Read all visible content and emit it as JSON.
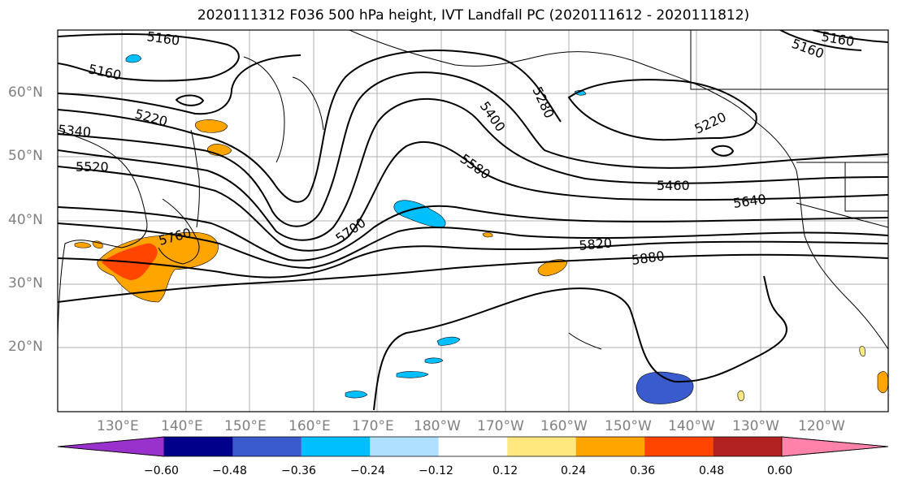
{
  "title": "2020111312 F036 500 hPa height, IVT Landfall PC (2020111612 - 2020111812)",
  "lat_labels": [
    "60°N",
    "50°N",
    "40°N",
    "30°N",
    "20°N"
  ],
  "lon_labels": [
    "130°E",
    "140°E",
    "150°E",
    "160°E",
    "170°E",
    "180°W",
    "170°W",
    "160°W",
    "150°W",
    "140°W",
    "130°W",
    "120°W"
  ],
  "contour_labels": [
    "5160",
    "5160",
    "5220",
    "5340",
    "5520",
    "5400",
    "5280",
    "5220",
    "5160",
    "5160",
    "5580",
    "5460",
    "5640",
    "5700",
    "5760",
    "5820",
    "5880"
  ],
  "colorbar": {
    "tick_labels": [
      "−0.60",
      "−0.48",
      "−0.36",
      "−0.24",
      "−0.12",
      "0.12",
      "0.24",
      "0.36",
      "0.48",
      "0.60"
    ],
    "colors": [
      "#9932cc",
      "#00008b",
      "#3a5bcd",
      "#00bfff",
      "#b0e0ff",
      "#ffffff",
      "#ffe97f",
      "#ffa500",
      "#ff4500",
      "#b22222",
      "#ff82ab"
    ]
  },
  "map": {
    "lat_range": [
      10,
      70
    ],
    "lon_range_east": [
      120,
      250
    ]
  }
}
